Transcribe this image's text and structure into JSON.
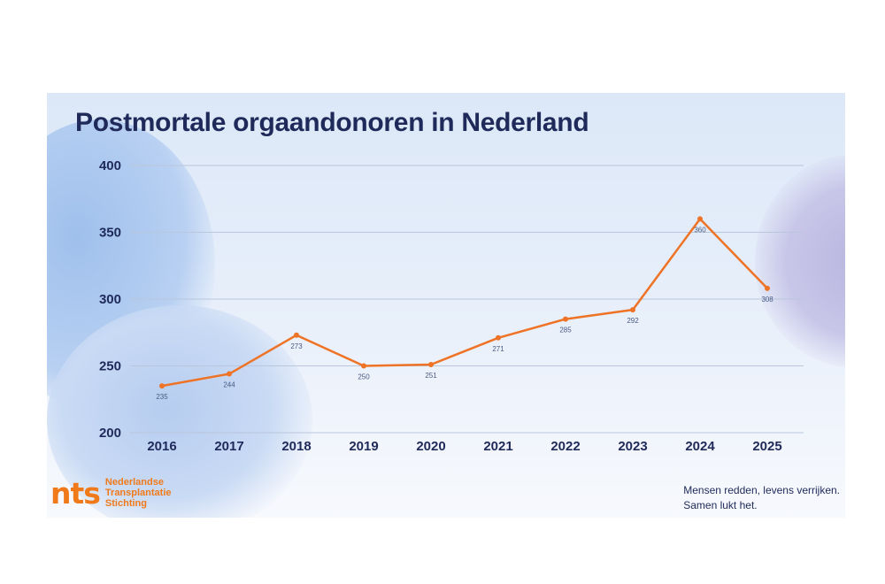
{
  "chart_data": {
    "type": "line",
    "title": "Postmortale orgaandonoren in Nederland",
    "x": [
      "2016",
      "2017",
      "2018",
      "2019",
      "2020",
      "2021",
      "2022",
      "2023",
      "2024",
      "2025"
    ],
    "values": [
      235,
      244,
      273,
      250,
      251,
      271,
      285,
      292,
      360,
      308
    ],
    "data_labels": [
      "235",
      "244",
      "273",
      "250",
      "251",
      "271",
      "285",
      "292",
      "360",
      "308"
    ],
    "yticks": [
      "200",
      "250",
      "300",
      "350",
      "400"
    ],
    "ylim": [
      200,
      400
    ],
    "grid": true,
    "legend": "none",
    "line_color": "#ee7326",
    "grid_color": "#b9c6dc",
    "text_color": "#1f2a5a"
  },
  "branding": {
    "logo_mark": "nts",
    "logo_lines": [
      "Nederlandse",
      "Transplantatie",
      "Stichting"
    ],
    "logo_color": "#f07a1a"
  },
  "slogan": {
    "line1": "Mensen redden, levens verrijken.",
    "line2": "Samen lukt het."
  }
}
